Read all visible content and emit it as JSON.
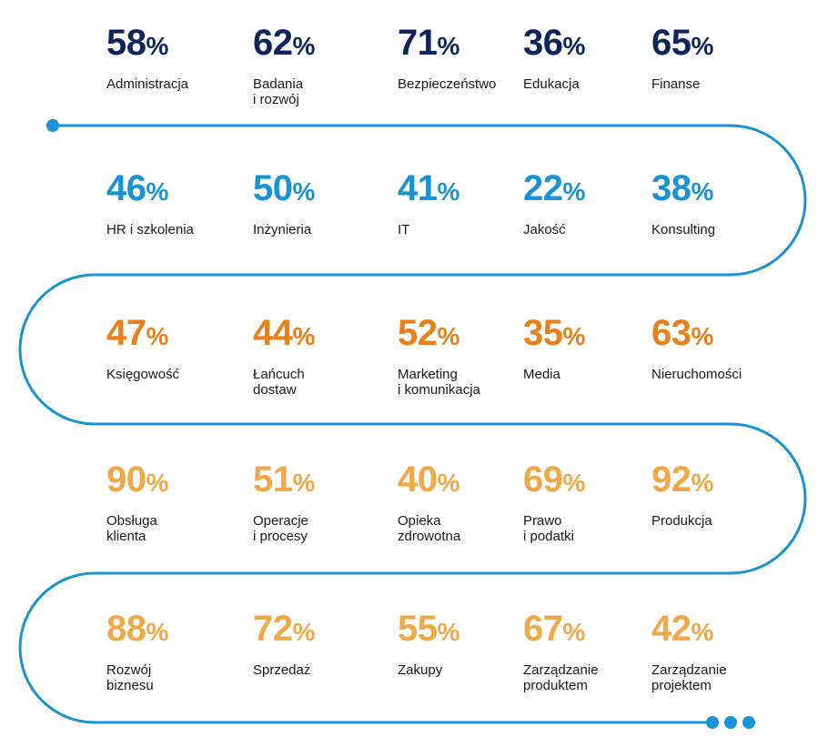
{
  "percent_symbol": "%",
  "colors": {
    "navy": "#10245c",
    "blue": "#1a93d4",
    "orange": "#e8811a",
    "light_orange": "#f0a848",
    "path": "#1a93d4"
  },
  "rows": [
    {
      "tone": "navy",
      "items": [
        {
          "value": "58",
          "label": "Administracja"
        },
        {
          "value": "62",
          "label": "Badania\ni rozwój"
        },
        {
          "value": "71",
          "label": "Bezpieczeństwo"
        },
        {
          "value": "36",
          "label": "Edukacja"
        },
        {
          "value": "65",
          "label": "Finanse"
        }
      ]
    },
    {
      "tone": "blue",
      "items": [
        {
          "value": "46",
          "label": "HR i szkolenia"
        },
        {
          "value": "50",
          "label": "Inżynieria"
        },
        {
          "value": "41",
          "label": "IT"
        },
        {
          "value": "22",
          "label": "Jakość"
        },
        {
          "value": "38",
          "label": "Konsulting"
        }
      ]
    },
    {
      "tone": "orange",
      "items": [
        {
          "value": "47",
          "label": "Księgowość"
        },
        {
          "value": "44",
          "label": "Łańcuch\ndostaw"
        },
        {
          "value": "52",
          "label": "Marketing\ni komunikacja"
        },
        {
          "value": "35",
          "label": "Media"
        },
        {
          "value": "63",
          "label": "Nieruchomości"
        }
      ]
    },
    {
      "tone": "lightorange",
      "items": [
        {
          "value": "90",
          "label": "Obsługa\nklienta"
        },
        {
          "value": "51",
          "label": "Operacje\ni procesy"
        },
        {
          "value": "40",
          "label": "Opieka\nzdrowotna"
        },
        {
          "value": "69",
          "label": "Prawo\ni podatki"
        },
        {
          "value": "92",
          "label": "Produkcja"
        }
      ]
    },
    {
      "tone": "lightorange",
      "items": [
        {
          "value": "88",
          "label": "Rozwój\nbiznesu"
        },
        {
          "value": "72",
          "label": "Sprzedaż"
        },
        {
          "value": "55",
          "label": "Zakupy"
        },
        {
          "value": "67",
          "label": "Zarządzanie\nproduktem"
        },
        {
          "value": "42",
          "label": "Zarządzanie\nprojektem"
        }
      ]
    }
  ]
}
